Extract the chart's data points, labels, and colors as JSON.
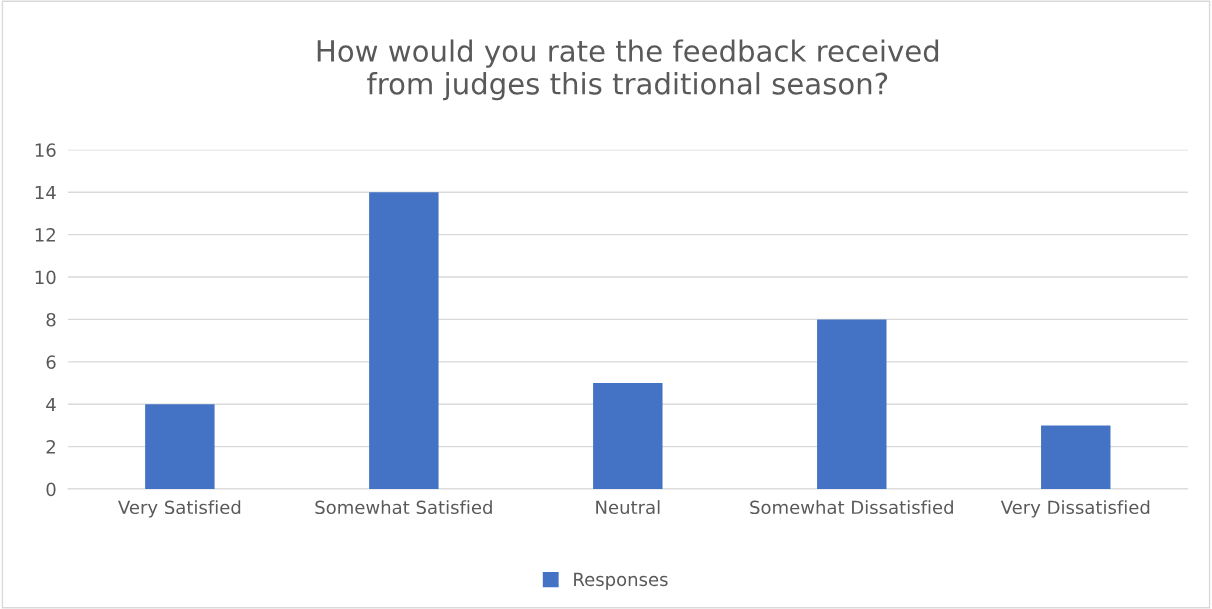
{
  "chart_data": {
    "type": "bar",
    "title": "How would you rate the feedback received\nfrom judges this traditional season?",
    "categories": [
      "Very Satisfied",
      "Somewhat Satisfied",
      "Neutral",
      "Somewhat Dissatisfied",
      "Very Dissatisfied"
    ],
    "series": [
      {
        "name": "Responses",
        "color": "#4472c4",
        "values": [
          4,
          14,
          5,
          8,
          3
        ]
      }
    ],
    "ylim": [
      0,
      16
    ],
    "yticks": [
      0,
      2,
      4,
      6,
      8,
      10,
      12,
      14,
      16
    ],
    "grid": "y",
    "legend": "bottom"
  }
}
